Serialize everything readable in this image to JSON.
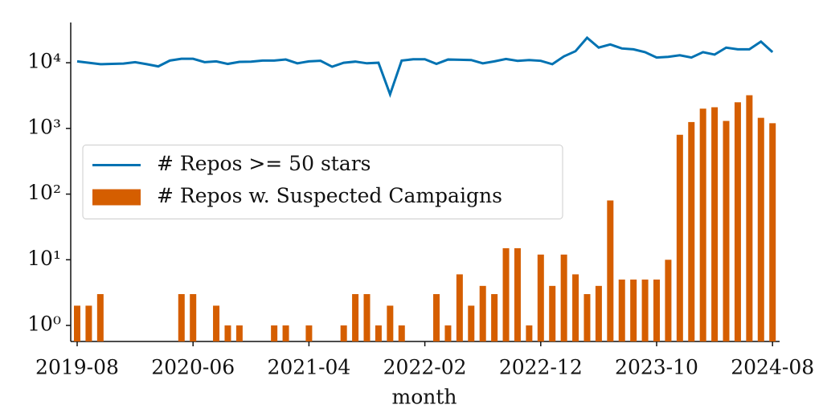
{
  "chart_data": {
    "type": "bar",
    "x": [
      "2019-08",
      "2019-09",
      "2019-10",
      "2019-11",
      "2019-12",
      "2020-01",
      "2020-02",
      "2020-03",
      "2020-04",
      "2020-05",
      "2020-06",
      "2020-07",
      "2020-08",
      "2020-09",
      "2020-10",
      "2020-11",
      "2020-12",
      "2021-01",
      "2021-02",
      "2021-03",
      "2021-04",
      "2021-05",
      "2021-06",
      "2021-07",
      "2021-08",
      "2021-09",
      "2021-10",
      "2021-11",
      "2021-12",
      "2022-01",
      "2022-02",
      "2022-03",
      "2022-04",
      "2022-05",
      "2022-06",
      "2022-07",
      "2022-08",
      "2022-09",
      "2022-10",
      "2022-11",
      "2022-12",
      "2023-01",
      "2023-02",
      "2023-03",
      "2023-04",
      "2023-05",
      "2023-06",
      "2023-07",
      "2023-08",
      "2023-09",
      "2023-10",
      "2023-11",
      "2023-12",
      "2024-01",
      "2024-02",
      "2024-03",
      "2024-04",
      "2024-05",
      "2024-06",
      "2024-07",
      "2024-08"
    ],
    "series": [
      {
        "name": "# Repos >= 50 stars",
        "type": "line",
        "color": "#0072b2",
        "values": [
          10500,
          10000,
          9500,
          9600,
          9700,
          10200,
          9500,
          8800,
          10800,
          11500,
          11500,
          10200,
          10500,
          9600,
          10300,
          10400,
          10800,
          10800,
          11200,
          9800,
          10500,
          10700,
          8700,
          10000,
          10400,
          9800,
          10000,
          3300,
          10800,
          11300,
          11300,
          9600,
          11200,
          11100,
          11000,
          9800,
          10500,
          11400,
          10700,
          11000,
          10700,
          9500,
          12500,
          15000,
          24000,
          17000,
          19000,
          16500,
          16000,
          14500,
          12000,
          12300,
          13000,
          12000,
          14500,
          13300,
          17000,
          16000,
          16000,
          21000,
          14500
        ]
      },
      {
        "name": "# Repos w. Suspected Campaigns",
        "type": "bar",
        "color": "#d55e00",
        "values": [
          2,
          2,
          3,
          null,
          null,
          null,
          null,
          null,
          null,
          3,
          3,
          null,
          2,
          1,
          1,
          null,
          null,
          1,
          1,
          null,
          1,
          null,
          null,
          1,
          3,
          3,
          1,
          2,
          1,
          null,
          null,
          3,
          1,
          6,
          2,
          4,
          3,
          15,
          15,
          1,
          12,
          4,
          12,
          6,
          3,
          4,
          80,
          5,
          5,
          5,
          5,
          10,
          800,
          1250,
          2000,
          2100,
          1300,
          2500,
          3200,
          1450,
          1200
        ]
      }
    ],
    "xlabel": "month",
    "xticks": [
      "2019-08",
      "2020-06",
      "2021-04",
      "2022-02",
      "2022-12",
      "2023-10",
      "2024-08"
    ],
    "yscale": "log",
    "ylim": [
      0.57,
      41000
    ],
    "yticks": [
      {
        "value": 1,
        "label": "10⁰"
      },
      {
        "value": 10,
        "label": "10¹"
      },
      {
        "value": 100,
        "label": "10²"
      },
      {
        "value": 1000,
        "label": "10³"
      },
      {
        "value": 10000,
        "label": "10⁴"
      }
    ],
    "legend": "center left"
  }
}
